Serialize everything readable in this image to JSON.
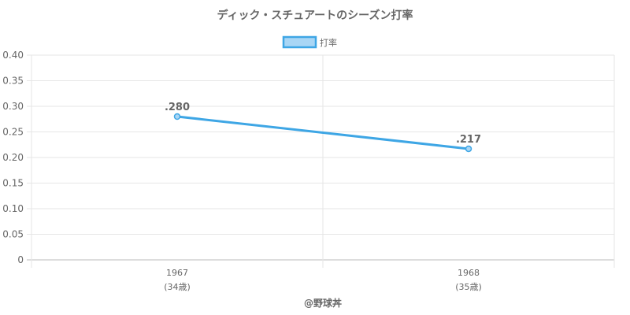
{
  "chart_data": {
    "type": "line",
    "title": "ディック・スチュアートのシーズン打率",
    "legend": {
      "position": "top",
      "label": "打率"
    },
    "categories": [
      "1967",
      "1968"
    ],
    "category_sublabels": [
      "(34歳)",
      "(35歳)"
    ],
    "series": [
      {
        "name": "打率",
        "values": [
          0.28,
          0.217
        ],
        "data_labels": [
          ".280",
          ".217"
        ]
      }
    ],
    "yticks": [
      "0",
      "0.05",
      "0.10",
      "0.15",
      "0.20",
      "0.25",
      "0.30",
      "0.35",
      "0.40"
    ],
    "ylim": [
      0,
      0.4
    ],
    "grid": true,
    "colors": {
      "line": "#3ea6e5",
      "fill": "#a9d6f5",
      "grid": "#e6e6e6",
      "axis": "#bbbbbb",
      "text": "#666666"
    }
  },
  "credit": "@野球丼"
}
